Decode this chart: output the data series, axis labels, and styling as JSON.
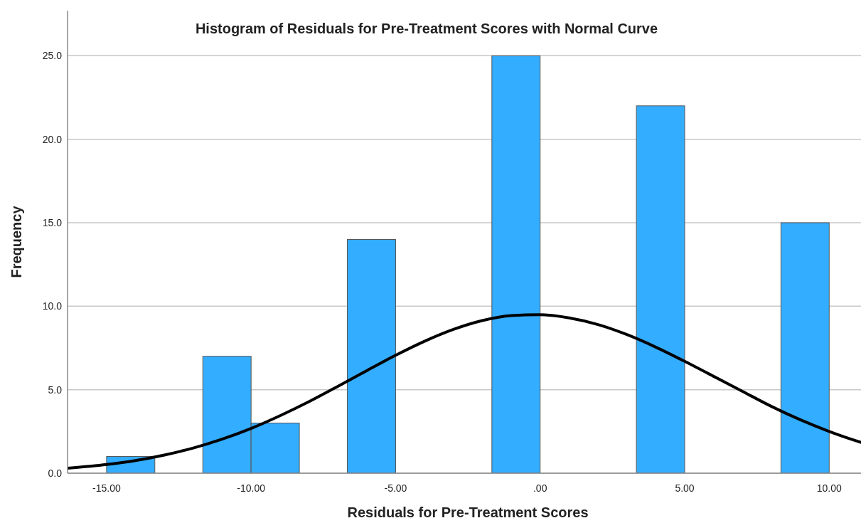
{
  "chart_data": {
    "type": "histogram",
    "title": "Histogram of Residuals for Pre-Treatment Scores with Normal Curve",
    "xlabel": "Residuals for Pre-Treatment Scores",
    "ylabel": "Frequency",
    "bins": [
      -15,
      -13.33,
      -11.67,
      -10,
      -8.33,
      -6.67,
      -5,
      -3.33,
      -1.67,
      0,
      1.67,
      3.33,
      5,
      6.67,
      8.33,
      10
    ],
    "series": [
      {
        "color": "#33adff",
        "values": [
          1,
          0,
          7,
          3,
          0,
          14,
          0,
          0,
          25,
          0,
          0,
          22,
          0,
          0,
          15
        ]
      },
      {
        "type": "line",
        "color": "#000000",
        "x": [
          -16.35,
          -15,
          -14,
          -13,
          -12,
          -11,
          -10,
          -9,
          -8,
          -7,
          -6,
          -5,
          -4,
          -3,
          -2,
          -1,
          0,
          1,
          2,
          3,
          4,
          5,
          6,
          7,
          8,
          9,
          10,
          11,
          11.09
        ],
        "values": [
          0.3,
          0.52,
          0.76,
          1.09,
          1.51,
          2.04,
          2.68,
          3.44,
          4.28,
          5.2,
          6.14,
          7.06,
          7.9,
          8.61,
          9.14,
          9.44,
          9.49,
          9.3,
          8.9,
          8.3,
          7.55,
          6.7,
          5.8,
          4.9,
          4.0,
          3.2,
          2.5,
          1.9,
          1.85
        ]
      }
    ],
    "xlim": [
      -16.35,
      11.1
    ],
    "xticks": [
      {
        "value": -15,
        "label": "-15.00"
      },
      {
        "value": -10,
        "label": "-10.00"
      },
      {
        "value": -5,
        "label": "-5.00"
      },
      {
        "value": 0,
        "label": ".00"
      },
      {
        "value": 5,
        "label": "5.00"
      },
      {
        "value": 10,
        "label": "10.00"
      }
    ],
    "ylim": [
      0,
      27.7
    ],
    "yticks": [
      {
        "value": 0,
        "label": "0.0"
      },
      {
        "value": 5,
        "label": "5.0"
      },
      {
        "value": 10,
        "label": "10.0"
      },
      {
        "value": 15,
        "label": "15.0"
      },
      {
        "value": 20,
        "label": "20.0"
      },
      {
        "value": 25,
        "label": "25.0"
      }
    ],
    "grid": "y",
    "marker": "none",
    "line_style": "solid"
  }
}
